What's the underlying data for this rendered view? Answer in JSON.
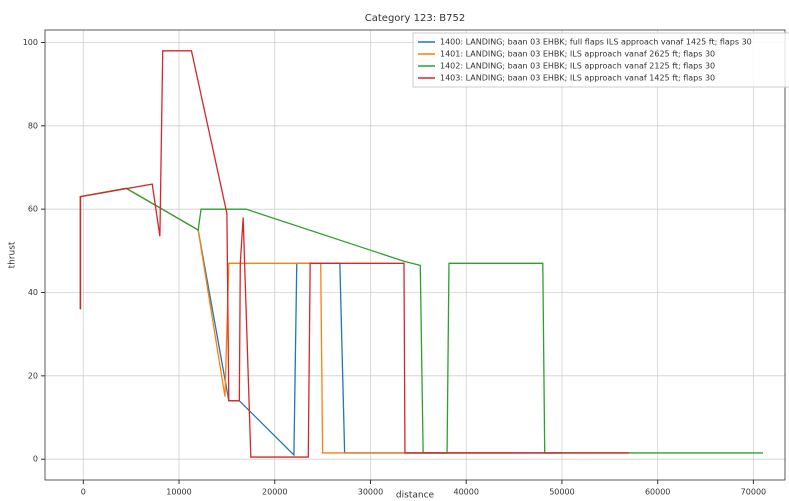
{
  "chart_data": {
    "type": "line",
    "title": "Category 123: B752",
    "xlabel": "distance",
    "ylabel": "thrust",
    "xlim": [
      -4000,
      73300
    ],
    "ylim": [
      -5,
      103
    ],
    "xticks": [
      0,
      10000,
      20000,
      30000,
      40000,
      50000,
      60000,
      70000
    ],
    "yticks": [
      0,
      20,
      40,
      60,
      80,
      100
    ],
    "grid": true,
    "legend": "upper right",
    "series": [
      {
        "name": "1400: LANDING; baan 03 EHBK; full flaps ILS approach vanaf 1425 ft; flaps 30",
        "color": "#1f77b4",
        "x": [
          -300,
          -300,
          4500,
          12000,
          15200,
          16300,
          22000,
          22300,
          26800,
          27300,
          50000
        ],
        "values": [
          36,
          63,
          65,
          55,
          14,
          14,
          1,
          47,
          47,
          1.5,
          1.5
        ]
      },
      {
        "name": "1401: LANDING; baan 03 EHBK; ILS approach vanaf 2625 ft; flaps 30",
        "color": "#ff7f0e",
        "x": [
          -300,
          -300,
          4500,
          12000,
          14800,
          15200,
          24800,
          25000,
          45000
        ],
        "values": [
          36,
          63,
          65,
          55,
          15,
          47,
          47,
          1.5,
          1.5
        ]
      },
      {
        "name": "1402: LANDING; baan 03 EHBK; ILS approach vanaf 2125 ft; flaps 30",
        "color": "#2ca02c",
        "x": [
          -300,
          -300,
          4500,
          12000,
          12300,
          17000,
          33500,
          35200,
          35500,
          38000,
          38200,
          48000,
          48200,
          71000
        ],
        "values": [
          36,
          63,
          65,
          55,
          60,
          60,
          47.5,
          46.5,
          1.5,
          1.5,
          47,
          47,
          1.5,
          1.5
        ]
      },
      {
        "name": "1403: LANDING; baan 03 EHBK; ILS approach vanaf 1425 ft; flaps 30",
        "color": "#d62728",
        "x": [
          -300,
          -300,
          7200,
          8000,
          8300,
          11300,
          15000,
          15200,
          16300,
          16400,
          16700,
          17500,
          23500,
          23700,
          33500,
          33600,
          57000
        ],
        "values": [
          36,
          63,
          66,
          53.5,
          98,
          98,
          59,
          14,
          14,
          47,
          58,
          0.5,
          0.5,
          47,
          47,
          1.5,
          1.5
        ]
      }
    ]
  }
}
